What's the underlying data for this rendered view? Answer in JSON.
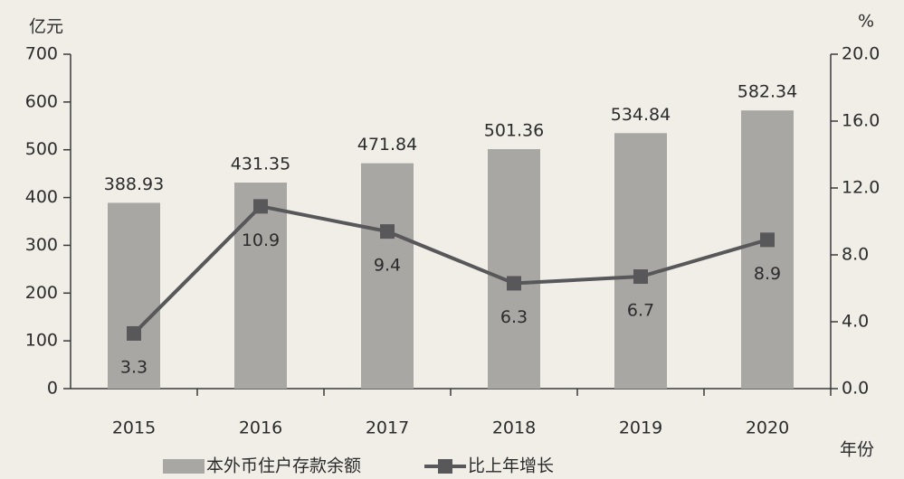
{
  "chart_data": {
    "type": "bar",
    "ylabel": "亿元",
    "y2label": "%",
    "xlabel": "年份",
    "categories": [
      "2015",
      "2016",
      "2017",
      "2018",
      "2019",
      "2020"
    ],
    "series": [
      {
        "name": "本外币住户存款余额",
        "type": "bar",
        "color": "#a9a7a3",
        "values": [
          388.93,
          431.35,
          471.84,
          501.36,
          534.84,
          582.34
        ]
      },
      {
        "name": "比上年增长",
        "type": "line",
        "axis": "y2",
        "color": "#58575a",
        "values": [
          3.3,
          10.9,
          9.4,
          6.3,
          6.7,
          8.9
        ]
      }
    ],
    "ylim": [
      0,
      700
    ],
    "yticks": [
      0,
      100,
      200,
      300,
      400,
      500,
      600,
      700
    ],
    "y2lim": [
      0,
      20
    ],
    "y2ticks": [
      {
        "value": 0,
        "label": "0.0"
      },
      {
        "value": 4,
        "label": "4.0"
      },
      {
        "value": 8,
        "label": "8.0"
      },
      {
        "value": 12,
        "label": "12.0"
      },
      {
        "value": 16,
        "label": "16.0"
      },
      {
        "value": 20,
        "label": "20.0"
      }
    ],
    "legend": "bottom"
  }
}
